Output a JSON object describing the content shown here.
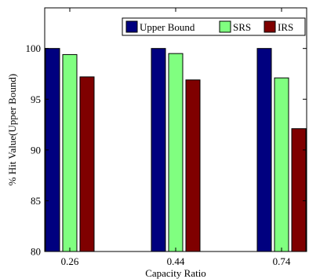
{
  "chart_data": {
    "type": "bar",
    "categories": [
      "0.26",
      "0.44",
      "0.74"
    ],
    "series": [
      {
        "name": "Upper Bound",
        "color": "#00007f",
        "values": [
          100,
          100,
          100
        ]
      },
      {
        "name": "SRS",
        "color": "#80ff80",
        "values": [
          99.4,
          99.5,
          97.1
        ]
      },
      {
        "name": "IRS",
        "color": "#7f0000",
        "values": [
          97.2,
          96.9,
          92.1
        ]
      }
    ],
    "xlabel": "Capacity Ratio",
    "ylabel": "% Hit Value(Upper Bound)",
    "ylim": [
      80,
      104
    ],
    "yticks": [
      80,
      85,
      90,
      95,
      100
    ],
    "legend_position": "top-right",
    "grid": false
  }
}
